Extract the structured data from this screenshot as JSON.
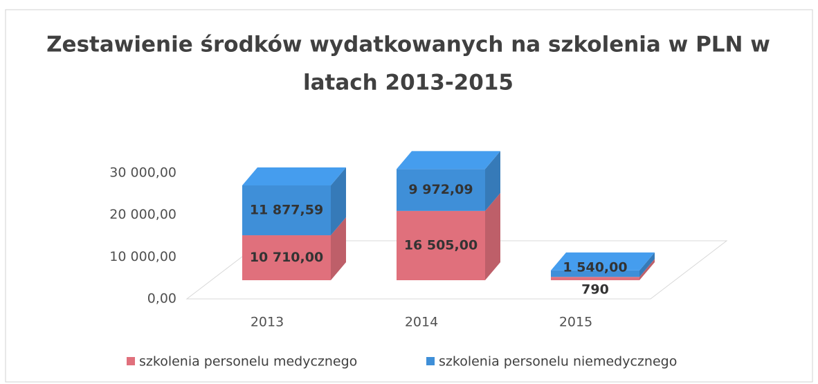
{
  "chart_data": {
    "type": "bar3d-stacked",
    "title": "Zestawienie środków wydatkowanych na szkolenia w PLN w latach 2013-2015",
    "title_lines": [
      "Zestawienie środków wydatkowanych na szkolenia w PLN w",
      "latach 2013-2015"
    ],
    "categories": [
      "2013",
      "2014",
      "2015"
    ],
    "series": [
      {
        "name": "szkolenia personelu medycznego",
        "color": "#e0707c",
        "values": [
          10710,
          16505,
          790
        ],
        "value_labels": [
          "10 710,00",
          "16 505,00",
          "790"
        ]
      },
      {
        "name": "szkolenia personelu niemedycznego",
        "color": "#3f8fd8",
        "values": [
          11877.59,
          9972.09,
          1540
        ],
        "value_labels": [
          "11 877,59",
          "9 972,09",
          "1 540,00"
        ]
      }
    ],
    "ylim": [
      0,
      30000
    ],
    "yticks": [
      {
        "value": 0,
        "label": "0,00"
      },
      {
        "value": 10000,
        "label": "10 000,00"
      },
      {
        "value": 20000,
        "label": "20 000,00"
      },
      {
        "value": 30000,
        "label": "30 000,00"
      }
    ],
    "legend": "bottom"
  }
}
